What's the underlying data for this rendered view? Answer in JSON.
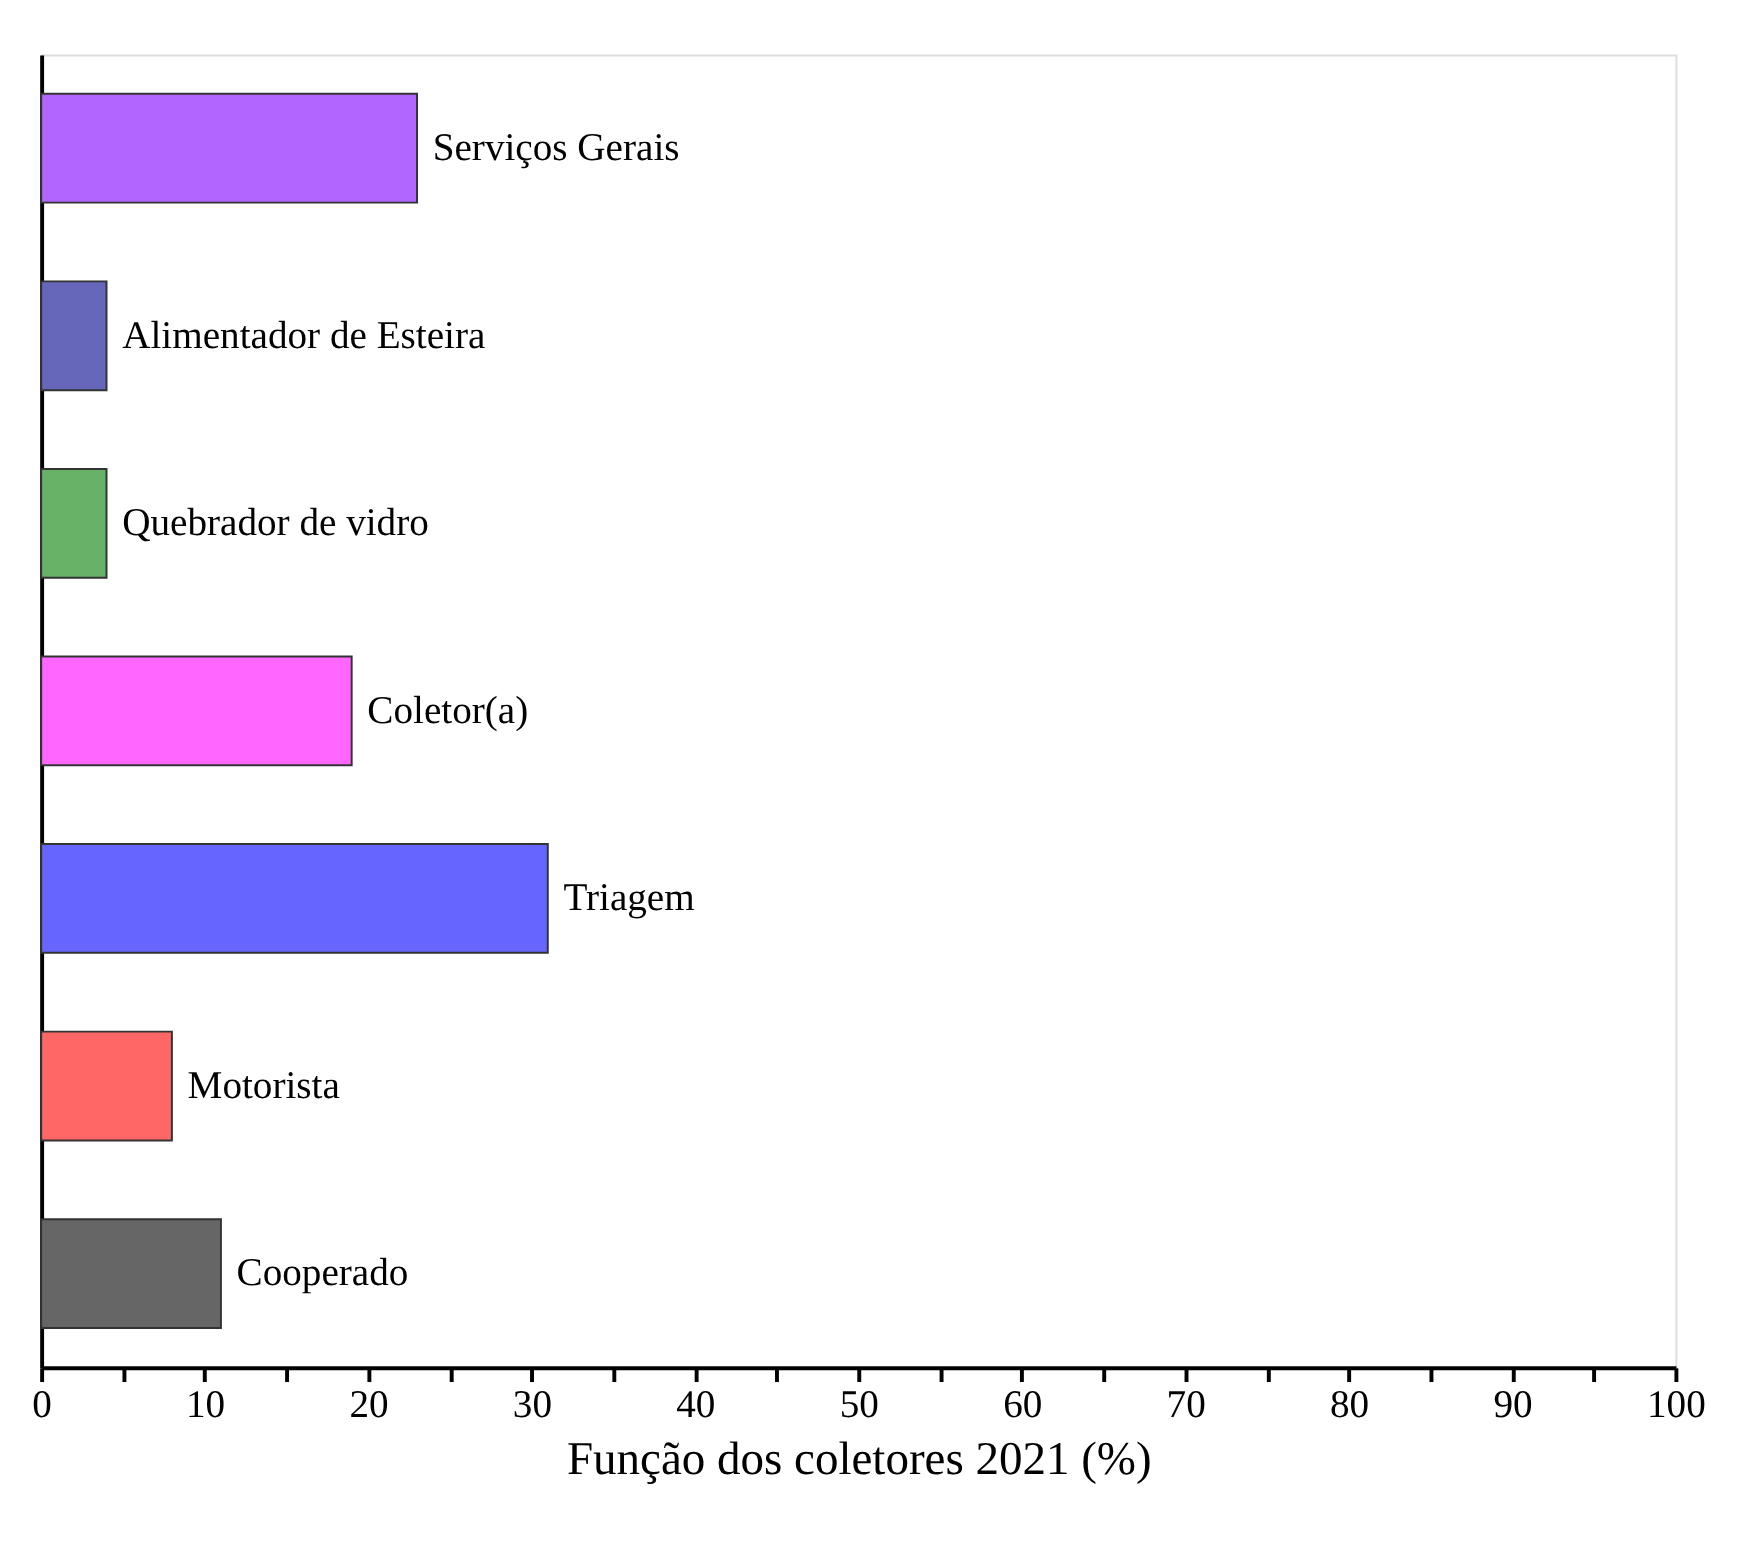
{
  "chart_data": {
    "type": "bar",
    "orientation": "horizontal",
    "xlabel": "Função dos coletores 2021 (%)",
    "categories": [
      "Serviços Gerais",
      "Alimentador de Esteira",
      "Quebrador de vidro",
      "Coletor(a)",
      "Triagem",
      "Motorista",
      "Cooperado"
    ],
    "values": [
      23,
      4,
      4,
      19,
      31,
      8,
      11
    ],
    "colors": [
      "#b266ff",
      "#6666bb",
      "#66b266",
      "#ff66ff",
      "#6666ff",
      "#ff6666",
      "#666666"
    ],
    "xlim": [
      0,
      100
    ],
    "xticks": [
      0,
      {
        "value": 5,
        "label": null
      },
      10,
      {
        "value": 15,
        "label": null
      },
      20,
      {
        "value": 25,
        "label": null
      },
      30,
      {
        "value": 35,
        "label": null
      },
      40,
      {
        "value": 45,
        "label": null
      },
      50,
      {
        "value": 55,
        "label": null
      },
      60,
      {
        "value": 65,
        "label": null
      },
      70,
      {
        "value": 75,
        "label": null
      },
      80,
      {
        "value": 85,
        "label": null
      },
      90,
      {
        "value": 95,
        "label": null
      },
      100
    ],
    "tick_labels": "x",
    "grid": false
  }
}
